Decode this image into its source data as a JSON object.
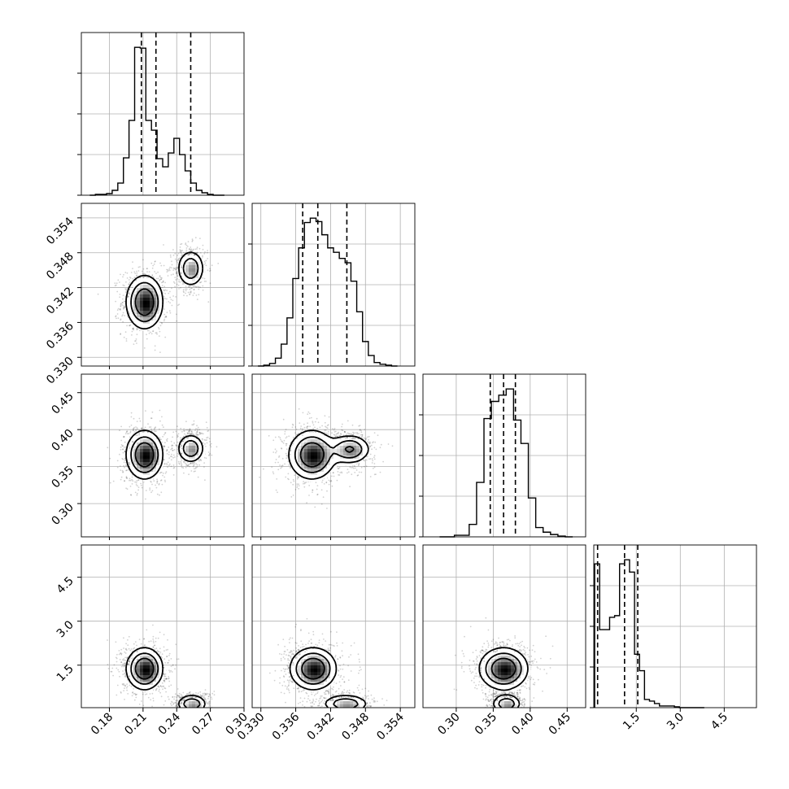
{
  "chart_data": {
    "type": "corner",
    "grid": true,
    "colors": {
      "line": "#000000",
      "grid": "#b0b0b0",
      "fill_dark": "#000000",
      "fill_light": "#ffffff",
      "points": "#000000"
    },
    "parameters": [
      {
        "range": [
          0.155,
          0.3
        ],
        "ticks": [
          "0.18",
          "0.21",
          "0.24",
          "0.27",
          "0.30"
        ],
        "tick_values": [
          0.18,
          0.21,
          0.24,
          0.27,
          0.3
        ],
        "quantiles": [
          0.2085,
          0.2215,
          0.2525
        ]
      },
      {
        "range": [
          0.3285,
          0.3565
        ],
        "ticks": [
          "0.330",
          "0.336",
          "0.342",
          "0.348",
          "0.354"
        ],
        "tick_values": [
          0.33,
          0.336,
          0.342,
          0.348,
          0.354
        ],
        "quantiles": [
          0.3372,
          0.3398,
          0.3448
        ]
      },
      {
        "range": [
          0.255,
          0.475
        ],
        "ticks": [
          "0.30",
          "0.35",
          "0.40",
          "0.45"
        ],
        "tick_values": [
          0.3,
          0.35,
          0.4,
          0.45
        ],
        "quantiles": [
          0.346,
          0.364,
          0.38
        ]
      },
      {
        "range": [
          0.05,
          5.6
        ],
        "ticks": [
          "1.5",
          "3.0",
          "4.5"
        ],
        "tick_values": [
          1.5,
          3.0,
          4.5
        ],
        "quantiles": [
          0.18,
          1.1,
          1.55
        ]
      }
    ],
    "histograms": [
      {
        "param": 0,
        "bin_edges": [
          0.1625,
          0.1675,
          0.1725,
          0.1775,
          0.1825,
          0.1875,
          0.1925,
          0.1975,
          0.2025,
          0.2075,
          0.2125,
          0.2175,
          0.2225,
          0.2275,
          0.2325,
          0.2375,
          0.2425,
          0.2475,
          0.2525,
          0.2575,
          0.2625,
          0.2675,
          0.2725,
          0.2775,
          0.2825
        ],
        "counts": [
          0,
          1,
          1,
          2,
          6,
          15,
          46,
          92,
          182,
          181,
          92,
          80,
          45,
          35,
          52,
          70,
          50,
          30,
          15,
          6,
          3,
          1,
          0,
          0
        ]
      },
      {
        "param": 1,
        "bin_edges": [
          0.3295,
          0.3305,
          0.3315,
          0.3325,
          0.3335,
          0.3345,
          0.3355,
          0.3365,
          0.3375,
          0.3385,
          0.3395,
          0.3405,
          0.3415,
          0.3425,
          0.3435,
          0.3445,
          0.3455,
          0.3465,
          0.3475,
          0.3485,
          0.3495,
          0.3505,
          0.3515,
          0.3525,
          0.3535
        ],
        "counts": [
          0,
          1,
          3,
          9,
          25,
          55,
          100,
          135,
          164,
          169,
          165,
          150,
          135,
          130,
          123,
          118,
          97,
          62,
          28,
          12,
          4,
          2,
          1,
          0
        ]
      },
      {
        "param": 2,
        "bin_edges": [
          0.2775,
          0.2875,
          0.2975,
          0.3075,
          0.3175,
          0.3275,
          0.3375,
          0.3475,
          0.3575,
          0.3675,
          0.3775,
          0.3875,
          0.3975,
          0.4075,
          0.4175,
          0.4275,
          0.4375,
          0.4475,
          0.4575
        ],
        "counts": [
          0,
          0,
          2,
          2,
          16,
          70,
          152,
          174,
          182,
          190,
          150,
          120,
          50,
          12,
          6,
          3,
          1,
          0
        ]
      },
      {
        "param": 3,
        "bin_edges": [
          0.08,
          0.25,
          0.42,
          0.59,
          0.76,
          0.93,
          1.1,
          1.27,
          1.44,
          1.61,
          1.78,
          1.95,
          2.12,
          2.29,
          2.46,
          2.63,
          2.8,
          2.97,
          3.14,
          3.31,
          3.48,
          3.65,
          3.82
        ],
        "counts": [
          175,
          95,
          95,
          110,
          112,
          175,
          180,
          165,
          65,
          45,
          10,
          8,
          5,
          2,
          2,
          2,
          1,
          0,
          0,
          0,
          0,
          0,
          0
        ]
      }
    ],
    "pairs": [
      {
        "x": 0,
        "y": 1,
        "clusters": [
          {
            "cx": 0.2113,
            "cy": 0.3395,
            "sx": 0.0082,
            "sy": 0.0023,
            "w": 0.62
          },
          {
            "cx": 0.2525,
            "cy": 0.3453,
            "sx": 0.0061,
            "sy": 0.0016,
            "w": 0.38
          }
        ]
      },
      {
        "x": 0,
        "y": 2,
        "clusters": [
          {
            "cx": 0.2113,
            "cy": 0.366,
            "sx": 0.0082,
            "sy": 0.0165,
            "w": 0.62
          },
          {
            "cx": 0.2525,
            "cy": 0.3745,
            "sx": 0.0061,
            "sy": 0.01,
            "w": 0.38
          }
        ]
      },
      {
        "x": 1,
        "y": 2,
        "clusters": [
          {
            "cx": 0.3388,
            "cy": 0.366,
            "sx": 0.002,
            "sy": 0.0165,
            "w": 0.6
          },
          {
            "cx": 0.3453,
            "cy": 0.3735,
            "sx": 0.0018,
            "sy": 0.01,
            "w": 0.4
          }
        ]
      },
      {
        "x": 0,
        "y": 3,
        "clusters": [
          {
            "cx": 0.2113,
            "cy": 1.38,
            "sx": 0.0082,
            "sy": 0.36,
            "w": 0.62
          },
          {
            "cx": 0.2535,
            "cy": 0.18,
            "sx": 0.0068,
            "sy": 0.16,
            "w": 0.38
          }
        ]
      },
      {
        "x": 1,
        "y": 3,
        "clusters": [
          {
            "cx": 0.339,
            "cy": 1.38,
            "sx": 0.002,
            "sy": 0.36,
            "w": 0.62
          },
          {
            "cx": 0.3446,
            "cy": 0.18,
            "sx": 0.002,
            "sy": 0.16,
            "w": 0.38
          }
        ]
      },
      {
        "x": 2,
        "y": 3,
        "clusters": [
          {
            "cx": 0.364,
            "cy": 1.38,
            "sx": 0.0165,
            "sy": 0.36,
            "w": 0.62
          },
          {
            "cx": 0.368,
            "cy": 0.18,
            "sx": 0.01,
            "sy": 0.16,
            "w": 0.38
          }
        ]
      }
    ]
  }
}
